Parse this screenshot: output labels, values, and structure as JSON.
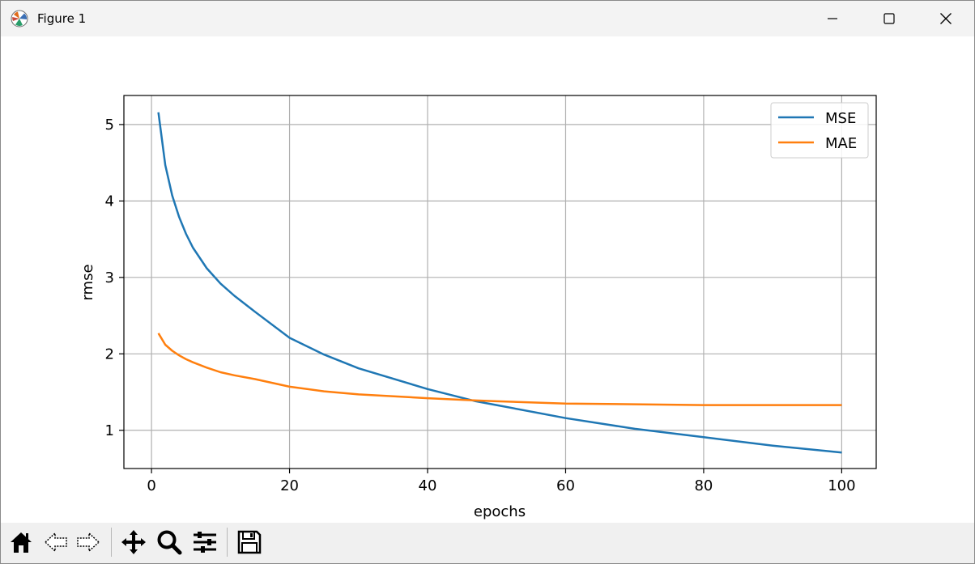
{
  "window": {
    "title": "Figure 1"
  },
  "toolbar": {
    "icons": [
      "home-icon",
      "back-icon",
      "forward-icon",
      "pan-icon",
      "zoom-icon",
      "configure-subplots-icon",
      "save-icon"
    ]
  },
  "chart_data": {
    "type": "line",
    "xlabel": "epochs",
    "ylabel": "rmse",
    "xlim": [
      -4,
      105
    ],
    "ylim": [
      0.5,
      5.38
    ],
    "xticks": [
      0,
      20,
      40,
      60,
      80,
      100
    ],
    "yticks": [
      1,
      2,
      3,
      4,
      5
    ],
    "grid": true,
    "legend_position": "top-right",
    "x": [
      1,
      2,
      3,
      4,
      5,
      6,
      8,
      10,
      12,
      15,
      20,
      25,
      30,
      40,
      47,
      50,
      60,
      70,
      80,
      90,
      100
    ],
    "series": [
      {
        "name": "MSE",
        "color": "#1f77b4",
        "values": [
          5.16,
          4.47,
          4.07,
          3.79,
          3.57,
          3.39,
          3.12,
          2.92,
          2.76,
          2.55,
          2.21,
          1.99,
          1.81,
          1.54,
          1.38,
          1.33,
          1.16,
          1.02,
          0.91,
          0.8,
          0.71
        ]
      },
      {
        "name": "MAE",
        "color": "#ff7f0e",
        "values": [
          2.27,
          2.12,
          2.04,
          1.98,
          1.93,
          1.89,
          1.82,
          1.76,
          1.72,
          1.67,
          1.57,
          1.51,
          1.47,
          1.42,
          1.39,
          1.38,
          1.35,
          1.34,
          1.33,
          1.33,
          1.33
        ]
      }
    ]
  }
}
